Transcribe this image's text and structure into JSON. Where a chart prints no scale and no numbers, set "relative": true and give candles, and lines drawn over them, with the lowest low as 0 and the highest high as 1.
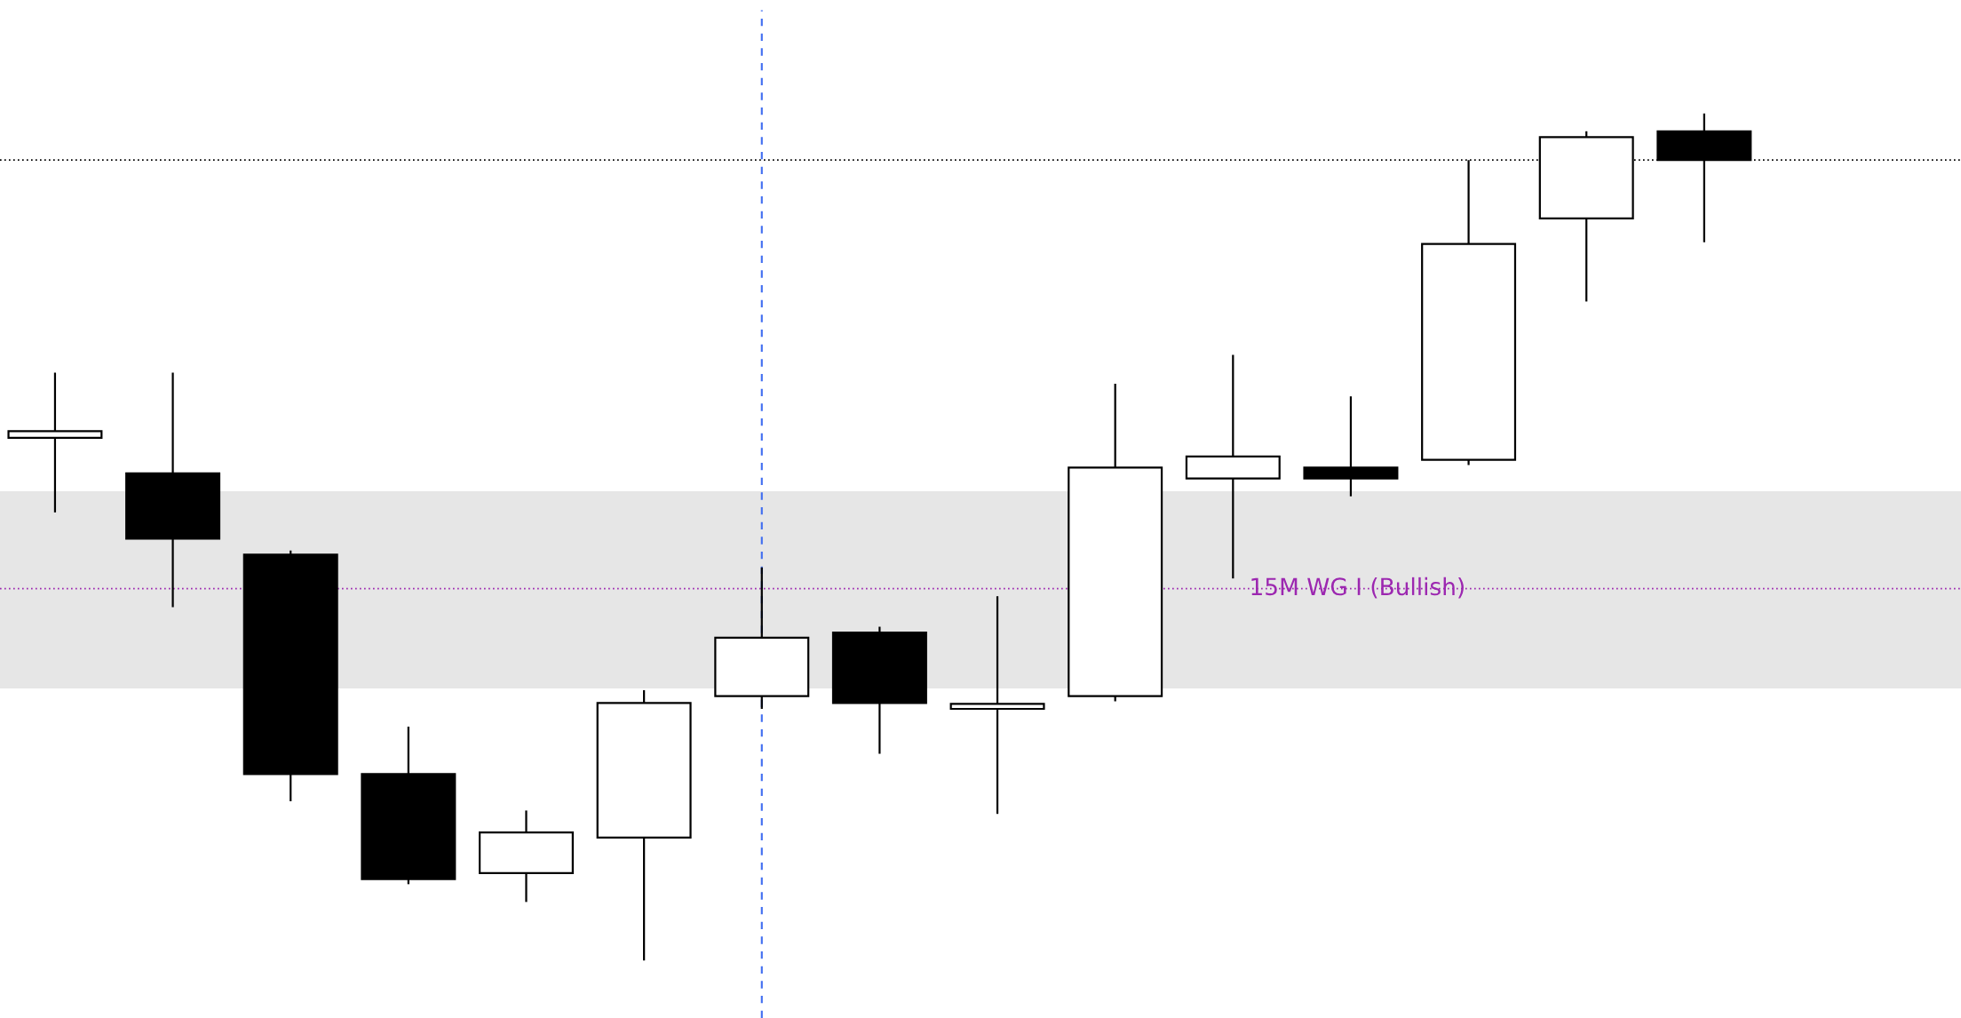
{
  "chart_data": {
    "type": "candlestick",
    "relative": true,
    "grid": false,
    "legend": false,
    "categories": [
      null,
      null,
      null,
      null,
      null,
      null,
      null,
      null,
      null,
      null,
      null,
      null,
      null,
      null,
      null
    ],
    "ohlc": [
      [
        0.617,
        0.694,
        0.529,
        0.625
      ],
      [
        0.575,
        0.694,
        0.417,
        0.498
      ],
      [
        0.479,
        0.484,
        0.188,
        0.22
      ],
      [
        0.22,
        0.276,
        0.09,
        0.096
      ],
      [
        0.103,
        0.177,
        0.069,
        0.151
      ],
      [
        0.145,
        0.319,
        0.0,
        0.304
      ],
      [
        0.312,
        0.464,
        0.297,
        0.381
      ],
      [
        0.387,
        0.394,
        0.244,
        0.304
      ],
      [
        0.297,
        0.43,
        0.173,
        0.303
      ],
      [
        0.312,
        0.681,
        0.306,
        0.582
      ],
      [
        0.569,
        0.715,
        0.451,
        0.595
      ],
      [
        0.582,
        0.666,
        0.548,
        0.569
      ],
      [
        0.591,
        0.945,
        0.585,
        0.846
      ],
      [
        0.876,
        0.979,
        0.778,
        0.972
      ],
      [
        0.979,
        1.0,
        0.848,
        0.945
      ]
    ],
    "bands": [
      {
        "axis": "y",
        "from": 0.321,
        "to": 0.554,
        "color": "#e6e6e6"
      }
    ],
    "ref_lines": [
      {
        "axis": "y",
        "value": 0.945,
        "color": "#000000",
        "line_style": "dotted"
      },
      {
        "axis": "y",
        "value": 0.439,
        "color": "#9c27b0",
        "line_style": "dotted",
        "label": "15M WG I (Bullish)"
      }
    ]
  }
}
